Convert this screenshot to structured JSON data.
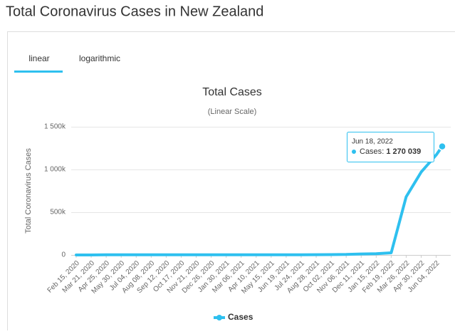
{
  "header": {
    "title": "Total Coronavirus Cases in New Zealand"
  },
  "tabs": [
    "linear",
    "logarithmic"
  ],
  "chart_data": {
    "type": "line",
    "title": "Total Cases",
    "subtitle": "(Linear Scale)",
    "y_label": "Total Coronavirus Cases",
    "x": [
      "Feb 15, 2020",
      "Mar 21, 2020",
      "Apr 25, 2020",
      "May 30, 2020",
      "Jul 04, 2020",
      "Aug 08, 2020",
      "Sep 12, 2020",
      "Oct 17, 2020",
      "Nov 21, 2020",
      "Dec 26, 2020",
      "Jan 30, 2021",
      "Mar 06, 2021",
      "Apr 10, 2021",
      "May 15, 2021",
      "Jun 19, 2021",
      "Jul 24, 2021",
      "Aug 28, 2021",
      "Oct 02, 2021",
      "Nov 06, 2021",
      "Dec 11, 2021",
      "Jan 15, 2022",
      "Feb 19, 2022",
      "Mar 26, 2022",
      "Apr 30, 2022",
      "Jun 04, 2022",
      "Jun 18, 2022"
    ],
    "series": [
      {
        "name": "Cases",
        "color": "#2ec0ef",
        "values": [
          0,
          52,
          1470,
          1504,
          1530,
          1570,
          1800,
          1880,
          2020,
          2160,
          2300,
          2400,
          2550,
          2650,
          2720,
          2850,
          3700,
          4300,
          6000,
          12000,
          15000,
          25000,
          680000,
          970000,
          1170000,
          1270039
        ],
        "value_labels": [
          null,
          null,
          null,
          null,
          null,
          null,
          null,
          null,
          null,
          null,
          null,
          null,
          null,
          null,
          null,
          null,
          null,
          null,
          null,
          null,
          null,
          null,
          null,
          null,
          null,
          "1 270 039"
        ]
      }
    ],
    "xlim": [
      "Feb 15, 2020",
      "Jun 18, 2022"
    ],
    "xticks": [
      "Feb 15, 2020",
      "Mar 21, 2020",
      "Apr 25, 2020",
      "May 30, 2020",
      "Jul 04, 2020",
      "Aug 08, 2020",
      "Sep 12, 2020",
      "Oct 17, 2020",
      "Nov 21, 2020",
      "Dec 26, 2020",
      "Jan 30, 2021",
      "Mar 06, 2021",
      "Apr 10, 2021",
      "May 15, 2021",
      "Jun 19, 2021",
      "Jul 24, 2021",
      "Aug 28, 2021",
      "Oct 02, 2021",
      "Nov 06, 2021",
      "Dec 11, 2021",
      "Jan 15, 2022",
      "Feb 19, 2022",
      "Mar 26, 2022",
      "Apr 30, 2022",
      "Jun 04, 2022"
    ],
    "ylim": [
      0,
      1500000
    ],
    "yticks": [
      0,
      {
        "value": 500000,
        "label": "500k"
      },
      {
        "value": 1000000,
        "label": "1 000k"
      },
      {
        "value": 1500000,
        "label": "1 500k"
      }
    ],
    "grid": true
  }
}
